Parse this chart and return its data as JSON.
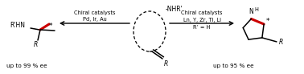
{
  "bg_color": "#ffffff",
  "fig_width": 3.78,
  "fig_height": 0.92,
  "dpi": 100,
  "caption_left": "up to 99 % ee",
  "caption_right": "up to 95 % ee",
  "left_arrow_top": "Chiral catalysts",
  "left_arrow_bot": "Pd, Ir, Au",
  "right_arrow_top": "Chiral catalysts",
  "right_arrow_mid": "Ln, Y, Zr, Ti, Li",
  "right_arrow_bot": "R’ = H",
  "red_color": "#cc0000",
  "black_color": "#000000",
  "fs": 5.5,
  "fs_small": 4.8,
  "fs_cap": 5.2
}
